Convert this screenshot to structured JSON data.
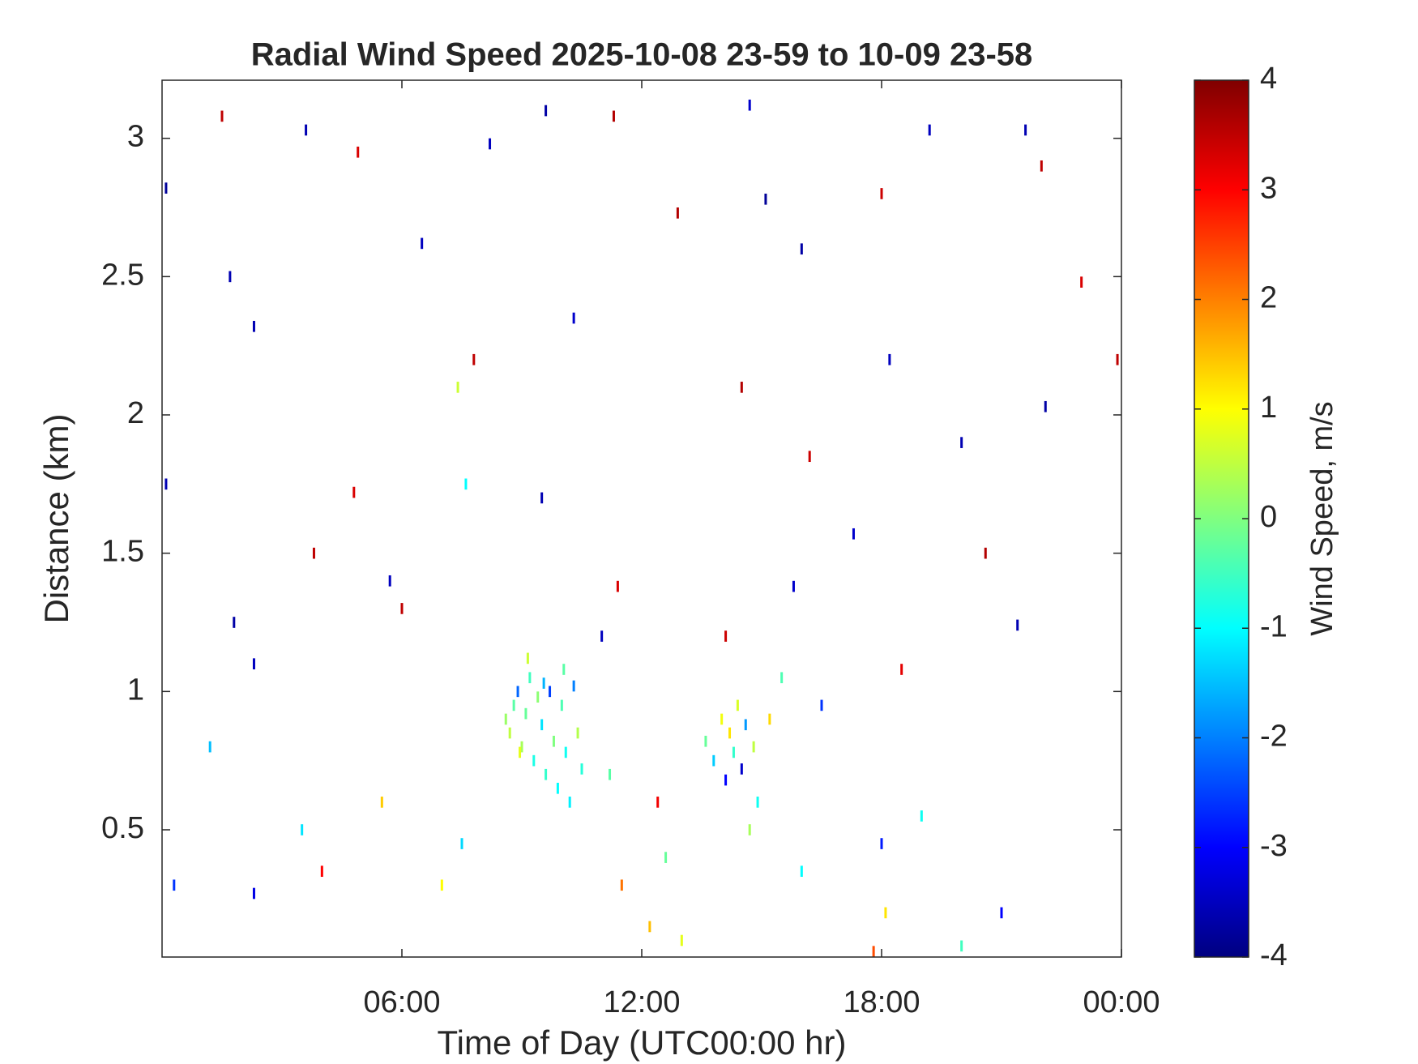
{
  "chart_data": {
    "type": "heatmap",
    "title": "Radial Wind Speed 2025-10-08 23-59 to 10-09 23-58",
    "xlabel": "Time of Day (UTC00:00 hr)",
    "ylabel": "Distance (km)",
    "colorbar_label": "Wind Speed, m/s",
    "colormap": "jet",
    "xlim": [
      0,
      24
    ],
    "xticks": [
      {
        "value": 6,
        "label": "06:00"
      },
      {
        "value": 12,
        "label": "12:00"
      },
      {
        "value": 18,
        "label": "18:00"
      },
      {
        "value": 24,
        "label": "00:00"
      }
    ],
    "ylim": [
      0.04,
      3.21
    ],
    "yticks": [
      0.5,
      1,
      1.5,
      2,
      2.5,
      3
    ],
    "clim": [
      -4,
      4
    ],
    "cticks": [
      -4,
      -3,
      -2,
      -1,
      0,
      1,
      2,
      3,
      4
    ],
    "x": [
      8.6,
      8.7,
      8.8,
      8.9,
      9.0,
      9.1,
      9.2,
      9.3,
      9.4,
      9.5,
      9.6,
      9.7,
      9.8,
      9.9,
      10.0,
      10.1,
      10.2,
      10.3,
      10.4,
      10.5,
      9.15,
      8.95,
      10.05,
      9.55,
      13.6,
      13.8,
      14.0,
      14.1,
      14.2,
      14.3,
      14.4,
      14.5,
      14.6,
      14.8,
      14.9,
      15.2,
      15.5,
      14.7,
      7.0,
      7.5,
      11.5,
      12.2,
      12.6,
      13.0,
      16.0,
      17.8,
      18.1,
      18.0,
      19.0,
      21.0,
      5.5,
      3.5,
      1.2,
      0.3,
      2.3,
      4.0,
      20.0,
      11.2,
      12.4,
      16.5,
      18.5,
      1.5,
      3.6,
      4.9,
      8.2,
      9.6,
      11.3,
      14.7,
      15.1,
      18.0,
      19.2,
      21.6,
      22.0,
      1.7,
      6.5,
      12.9,
      16.0,
      23.0,
      2.3,
      7.8,
      10.3,
      14.5,
      18.2,
      22.1,
      7.4,
      7.6,
      4.8,
      9.5,
      16.2,
      20.0,
      3.8,
      5.7,
      11.4,
      15.8,
      20.6,
      1.8,
      6.0,
      11.0,
      14.1,
      21.4,
      2.3,
      0.1,
      0.1,
      23.9,
      17.3
    ],
    "y": [
      0.9,
      0.85,
      0.95,
      1.0,
      0.8,
      0.92,
      1.05,
      0.75,
      0.98,
      0.88,
      0.7,
      1.0,
      0.82,
      0.65,
      0.95,
      0.78,
      0.6,
      1.02,
      0.85,
      0.72,
      1.12,
      0.78,
      1.08,
      1.03,
      0.82,
      0.75,
      0.9,
      0.68,
      0.85,
      0.78,
      0.95,
      0.72,
      0.88,
      0.8,
      0.6,
      0.9,
      1.05,
      0.5,
      0.3,
      0.45,
      0.3,
      0.15,
      0.4,
      0.1,
      0.35,
      0.06,
      0.2,
      0.45,
      0.55,
      0.2,
      0.6,
      0.5,
      0.8,
      0.3,
      0.27,
      0.35,
      0.08,
      0.7,
      0.6,
      0.95,
      1.08,
      3.08,
      3.03,
      2.95,
      2.98,
      3.1,
      3.08,
      3.12,
      2.78,
      2.8,
      3.03,
      3.03,
      2.9,
      2.5,
      2.62,
      2.73,
      2.6,
      2.48,
      2.32,
      2.2,
      2.35,
      2.1,
      2.2,
      2.03,
      2.1,
      1.75,
      1.72,
      1.7,
      1.85,
      1.9,
      1.5,
      1.4,
      1.38,
      1.38,
      1.5,
      1.25,
      1.3,
      1.2,
      1.2,
      1.24,
      1.1,
      1.75,
      2.82,
      2.2,
      1.57
    ],
    "values": [
      0.2,
      0.5,
      -0.3,
      -2.2,
      0.3,
      -0.2,
      -0.5,
      -0.8,
      0.1,
      -1.2,
      -0.6,
      -2.5,
      0.0,
      -1.0,
      -0.4,
      -0.9,
      -1.1,
      -2.0,
      0.4,
      -0.7,
      0.6,
      0.8,
      -0.3,
      -1.6,
      -0.2,
      -1.4,
      0.9,
      -3.0,
      1.2,
      -0.6,
      0.7,
      -3.4,
      -1.8,
      0.5,
      -0.9,
      1.3,
      -0.4,
      0.3,
      1.0,
      -1.3,
      2.1,
      1.5,
      -0.2,
      0.8,
      -1.0,
      2.4,
      1.2,
      -2.8,
      -0.9,
      -3.0,
      1.4,
      -1.2,
      -1.5,
      -2.6,
      -3.2,
      3.0,
      -0.5,
      -0.3,
      3.1,
      -2.6,
      3.2,
      3.5,
      -3.6,
      3.3,
      -3.5,
      -3.7,
      3.6,
      -3.4,
      -3.8,
      3.4,
      -3.5,
      -3.6,
      3.5,
      -3.6,
      -3.5,
      3.6,
      -3.7,
      3.3,
      -3.6,
      3.5,
      -3.4,
      3.6,
      -3.5,
      -3.7,
      0.6,
      -1.0,
      3.3,
      -3.6,
      3.4,
      -3.6,
      3.5,
      -3.5,
      3.3,
      -3.4,
      3.6,
      -3.7,
      3.5,
      -3.5,
      3.4,
      -3.6,
      -3.5,
      -3.6,
      -3.8,
      3.5,
      -3.4
    ]
  }
}
